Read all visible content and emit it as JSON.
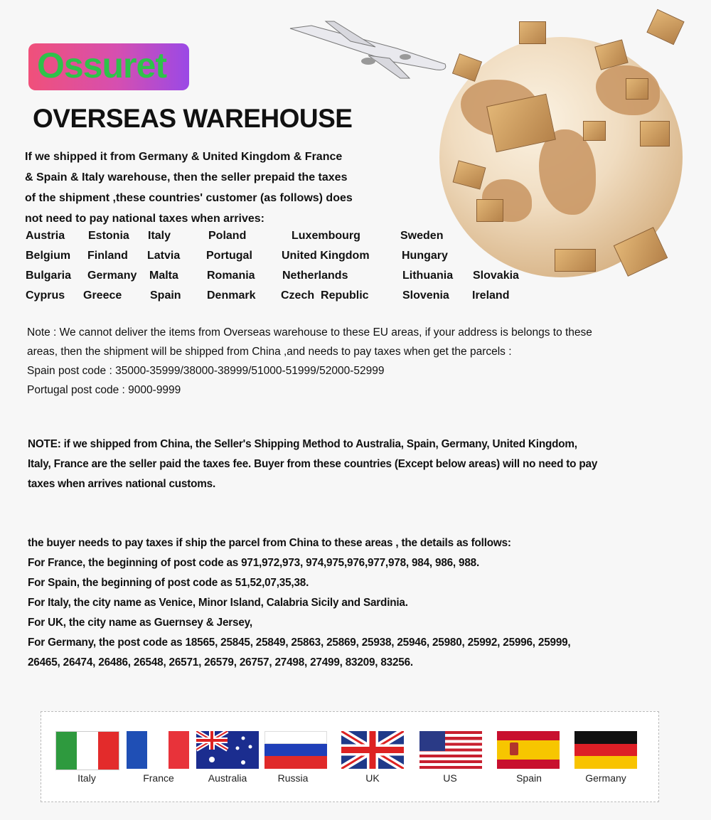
{
  "brand": {
    "logo_text": "Ossuret"
  },
  "title": "OVERSEAS WAREHOUSE",
  "intro_lines": [
    "If we shipped it from Germany & United Kingdom & France",
    "& Spain & Italy warehouse, then the seller prepaid the taxes",
    "of the shipment ,these countries' customer (as follows) does",
    "not need to pay national taxes when arrives:"
  ],
  "countries": [
    [
      "Austria",
      "Estonia",
      "Italy",
      "Poland",
      "Luxembourg",
      "Sweden"
    ],
    [
      "Belgium",
      "Finland",
      "Latvia",
      "Portugal",
      "United Kingdom",
      "Hungary"
    ],
    [
      "Bulgaria",
      "Germany",
      "Malta",
      "Romania",
      "Netherlands",
      "Lithuania",
      "Slovakia"
    ],
    [
      "Cyprus",
      "Greece",
      "Spain",
      "Denmark",
      "Czech  Republic",
      "Slovenia",
      "Ireland"
    ]
  ],
  "note_lines": [
    "Note : We cannot deliver the items from Overseas warehouse to these EU areas, if your address is belongs to these",
    "areas, then the shipment will be shipped from China ,and needs to pay taxes when get the parcels :",
    "Spain post code : 35000-35999/38000-38999/51000-51999/52000-52999",
    "Portugal post code : 9000-9999"
  ],
  "china_note_lines": [
    "NOTE: if we shipped from China, the Seller's Shipping Method to Australia, Spain, Germany, United Kingdom,",
    "Italy, France are the seller paid the taxes fee. Buyer from these countries (Except below areas) will no need to pay",
    "taxes when arrives national customs."
  ],
  "exception_lines": [
    "the buyer needs to pay taxes if ship the parcel from China to these areas , the details as follows:",
    "For France, the beginning of post code as 971,972,973, 974,975,976,977,978, 984, 986, 988.",
    "For Spain, the beginning of post code as 51,52,07,35,38.",
    "For Italy, the city name as Venice, Minor Island, Calabria Sicily and Sardinia.",
    "For UK, the city name as Guernsey & Jersey,",
    "For Germany, the post code as 18565, 25845, 25849, 25863, 25869, 25938, 25946, 25980, 25992, 25996, 25999,",
    "26465, 26474, 26486, 26548, 26571, 26579, 26757, 27498, 27499, 83209, 83256."
  ],
  "flags": [
    {
      "label": "Italy",
      "icon": "italy-flag-icon"
    },
    {
      "label": "France",
      "icon": "france-flag-icon"
    },
    {
      "label": "Australia",
      "icon": "australia-flag-icon"
    },
    {
      "label": "Russia",
      "icon": "russia-flag-icon"
    },
    {
      "label": "UK",
      "icon": "uk-flag-icon"
    },
    {
      "label": "US",
      "icon": "us-flag-icon"
    },
    {
      "label": "Spain",
      "icon": "spain-flag-icon"
    },
    {
      "label": "Germany",
      "icon": "germany-flag-icon"
    }
  ]
}
